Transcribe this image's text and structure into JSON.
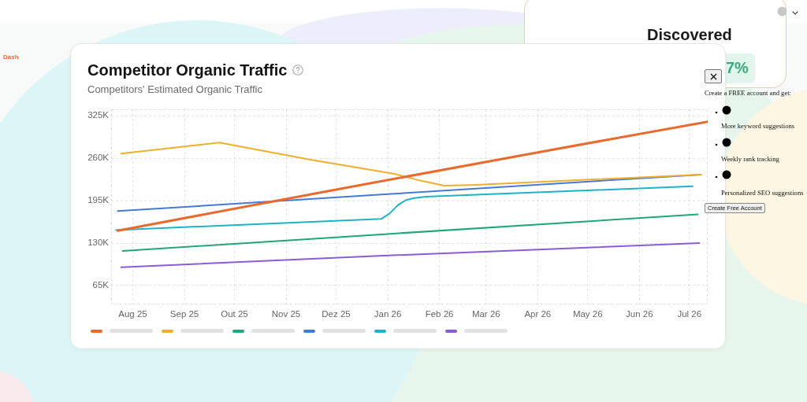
{
  "chart_data": {
    "type": "line",
    "title": "Competitor Organic Traffic",
    "subtitle": "Competitors' Estimated Organic Traffic",
    "xlim": [
      "2025-07-19",
      "2026-07-12"
    ],
    "xticks": [
      {
        "value": "2025-08-01",
        "label": "Aug 25"
      },
      {
        "value": "2025-09-01",
        "label": "Sep 25"
      },
      {
        "value": "2025-10-01",
        "label": "Out 25"
      },
      {
        "value": "2025-11-01",
        "label": "Nov 25"
      },
      {
        "value": "2025-12-01",
        "label": "Dez 25"
      },
      {
        "value": "2026-01-01",
        "label": "Jan 26"
      },
      {
        "value": "2026-02-01",
        "label": "Feb 26"
      },
      {
        "value": "2026-03-01",
        "label": "Mar 26"
      },
      {
        "value": "2026-04-01",
        "label": "Apr 26"
      },
      {
        "value": "2026-05-01",
        "label": "May 26"
      },
      {
        "value": "2026-06-01",
        "label": "Jun 26"
      },
      {
        "value": "2026-07-01",
        "label": "Jul 26"
      }
    ],
    "ylim": [
      36000,
      335000
    ],
    "yticks": [
      {
        "value": 65000,
        "label": "65K"
      },
      {
        "value": 130000,
        "label": "130K"
      },
      {
        "value": 195000,
        "label": "195K"
      },
      {
        "value": 260000,
        "label": "260K"
      },
      {
        "value": 325000,
        "label": "325K"
      }
    ],
    "grid": true,
    "series": [
      {
        "color": "#ea6a2d",
        "x": [
          "2025-07-23",
          "2025-12-01",
          "2026-04-01",
          "2026-07-12"
        ],
        "values": [
          149000,
          212000,
          269000,
          316000
        ]
      },
      {
        "color": "#f0ae2f",
        "x": [
          "2025-07-25",
          "2025-09-22",
          "2025-11-15",
          "2026-01-05",
          "2026-01-20",
          "2026-02-04",
          "2026-02-20",
          "2026-07-08"
        ],
        "values": [
          267000,
          284000,
          258000,
          236000,
          226000,
          218000,
          219000,
          235000
        ]
      },
      {
        "color": "#20a67a",
        "x": [
          "2025-07-26",
          "2026-01-01",
          "2026-07-06"
        ],
        "values": [
          118000,
          144000,
          174000
        ]
      },
      {
        "color": "#4579d8",
        "x": [
          "2025-07-23",
          "2026-01-01",
          "2026-07-08"
        ],
        "values": [
          179000,
          205000,
          235000
        ]
      },
      {
        "color": "#1eb3c9",
        "x": [
          "2025-07-22",
          "2025-12-28",
          "2026-01-02",
          "2026-01-07",
          "2026-01-12",
          "2026-01-17",
          "2026-01-24",
          "2026-07-03"
        ],
        "values": [
          150000,
          167000,
          175000,
          188000,
          196000,
          199000,
          201000,
          217000
        ]
      },
      {
        "color": "#8a5cd8",
        "x": [
          "2025-07-25",
          "2026-01-01",
          "2026-07-07"
        ],
        "values": [
          93000,
          111000,
          130000
        ]
      }
    ],
    "annotations": [
      "Create a FREE account and get:",
      "More keyword suggestions",
      "Weekly rank tracking",
      "Personalized SEO suggestions",
      "Create Free Account",
      "Discovered",
      "7%",
      "Dash"
    ]
  }
}
